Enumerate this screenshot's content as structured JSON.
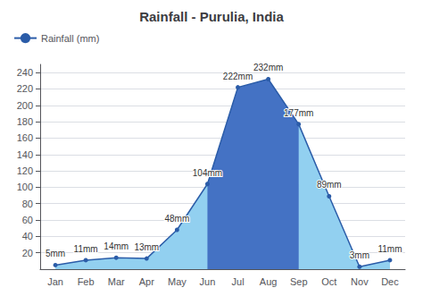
{
  "chart_data": {
    "type": "area",
    "title": "Rainfall - Purulia, India",
    "categories": [
      "Jan",
      "Feb",
      "Mar",
      "Apr",
      "May",
      "Jun",
      "Jul",
      "Aug",
      "Sep",
      "Oct",
      "Nov",
      "Dec"
    ],
    "series": [
      {
        "name": "Rainfall (mm)",
        "color": "#2B5CA8",
        "colors": [
          "#92D0F0",
          "#92D0F0",
          "#92D0F0",
          "#92D0F0",
          "#92D0F0",
          "#4472C4",
          "#4472C4",
          "#4472C4",
          "#4472C4",
          "#92D0F0",
          "#92D0F0",
          "#92D0F0"
        ],
        "values": [
          5,
          11,
          14,
          13,
          48,
          104,
          222,
          232,
          177,
          89,
          3,
          11
        ],
        "value_labels": [
          "5mm",
          "11mm",
          "14mm",
          "13mm",
          "48mm",
          "104mm",
          "222mm",
          "232mm",
          "177mm",
          "89mm",
          "3mm",
          "11mm"
        ]
      }
    ],
    "ylim": [
      0,
      250
    ],
    "yticks": [
      20,
      40,
      60,
      80,
      100,
      120,
      140,
      160,
      180,
      200,
      220,
      240
    ],
    "grid": true,
    "legend": "upper left",
    "data_labels": true,
    "marker": "circle"
  }
}
